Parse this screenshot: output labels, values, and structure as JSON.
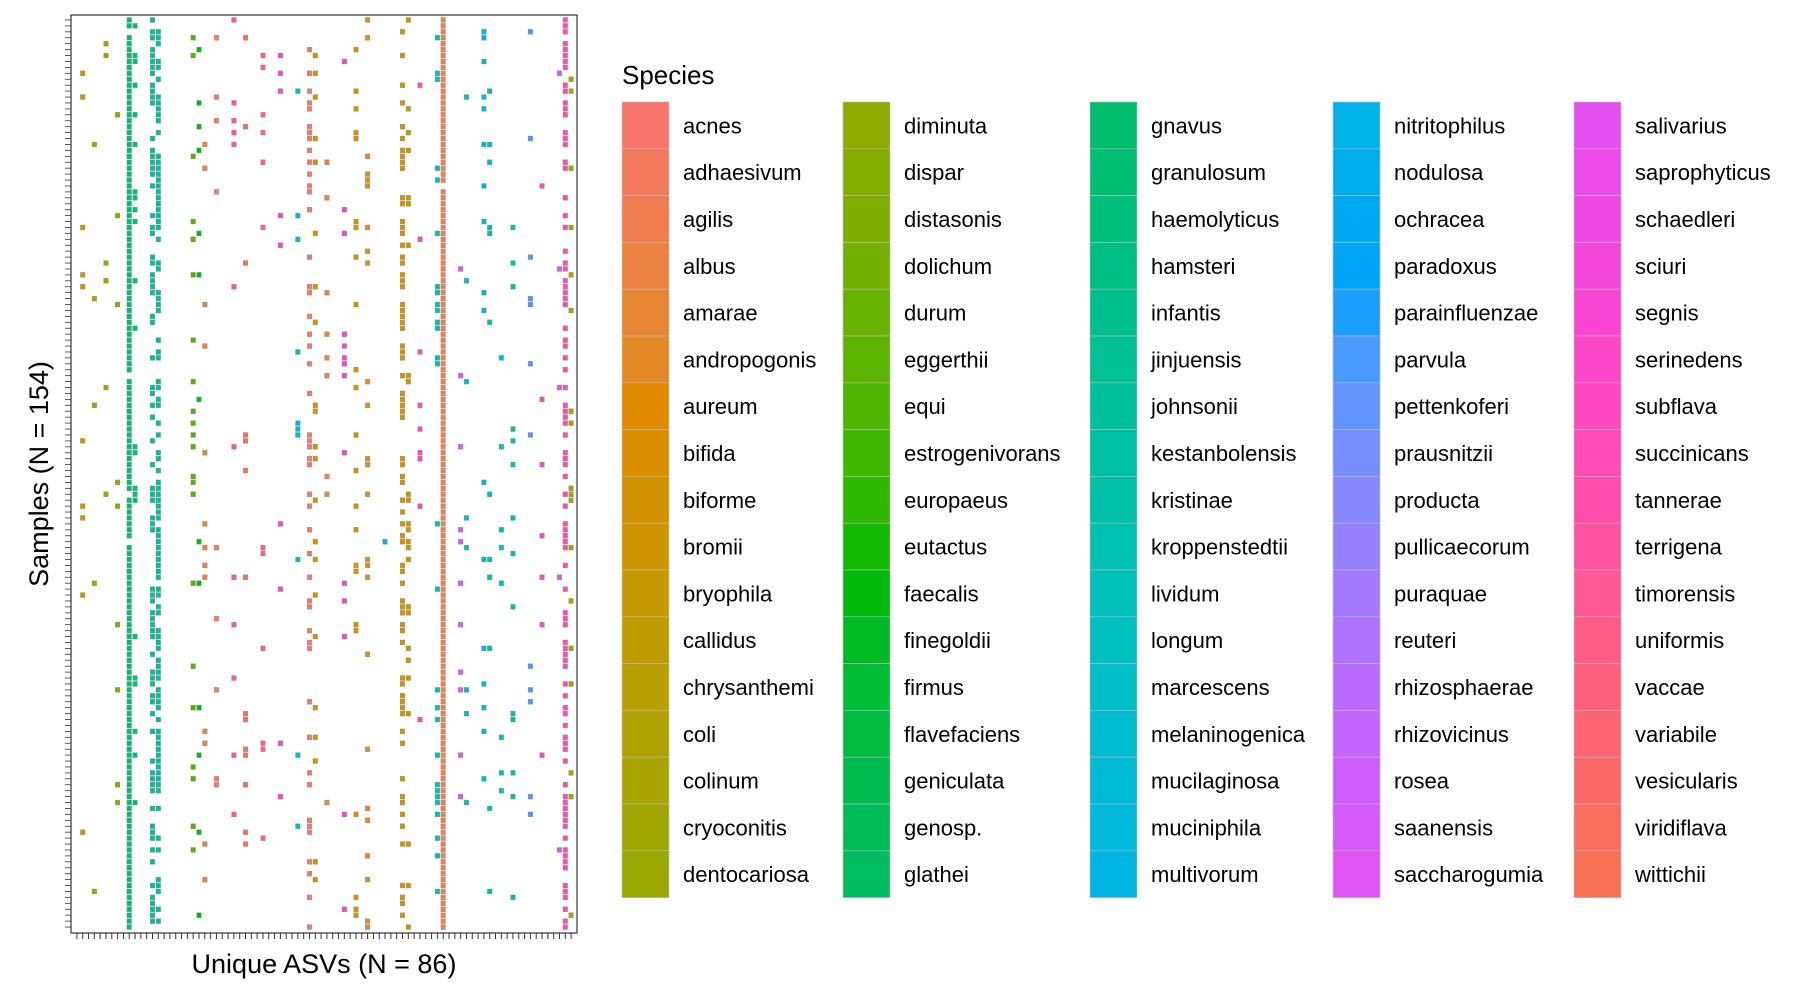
{
  "chart_data": {
    "type": "heatmap",
    "title": "",
    "xlabel": "Unique ASVs (N = 86)",
    "ylabel": "Samples (N = 154)",
    "n_x": 86,
    "n_y": 154,
    "grid": false,
    "legend": {
      "title": "Species",
      "placement": "right",
      "columns": 5,
      "entries": [
        {
          "name": "acnes",
          "color": "#F8766D"
        },
        {
          "name": "adhaesivum",
          "color": "#F47A5E"
        },
        {
          "name": "agilis",
          "color": "#F07E50"
        },
        {
          "name": "albus",
          "color": "#EB8241"
        },
        {
          "name": "amarae",
          "color": "#E78633"
        },
        {
          "name": "andropogonis",
          "color": "#E38A26"
        },
        {
          "name": "aureum",
          "color": "#E08B00"
        },
        {
          "name": "bifida",
          "color": "#DA8F00"
        },
        {
          "name": "biforme",
          "color": "#D39200"
        },
        {
          "name": "bromii",
          "color": "#CD9600"
        },
        {
          "name": "bryophila",
          "color": "#C69900"
        },
        {
          "name": "callidus",
          "color": "#BF9C00"
        },
        {
          "name": "chrysanthemi",
          "color": "#B8A000"
        },
        {
          "name": "coli",
          "color": "#B0A200"
        },
        {
          "name": "colinum",
          "color": "#A8A400"
        },
        {
          "name": "cryoconitis",
          "color": "#A0A600"
        },
        {
          "name": "dentocariosa",
          "color": "#98A800"
        },
        {
          "name": "diminuta",
          "color": "#8FAA00"
        },
        {
          "name": "dispar",
          "color": "#86AC00"
        },
        {
          "name": "distasonis",
          "color": "#7DAE00"
        },
        {
          "name": "dolichum",
          "color": "#73B000"
        },
        {
          "name": "durum",
          "color": "#68B200"
        },
        {
          "name": "eggerthii",
          "color": "#5CB400"
        },
        {
          "name": "equi",
          "color": "#4FB500"
        },
        {
          "name": "estrogenivorans",
          "color": "#40B700"
        },
        {
          "name": "europaeus",
          "color": "#2EB800"
        },
        {
          "name": "eutactus",
          "color": "#13B900"
        },
        {
          "name": "faecalis",
          "color": "#00BA0E"
        },
        {
          "name": "finegoldii",
          "color": "#00BA25"
        },
        {
          "name": "firmus",
          "color": "#00BB35"
        },
        {
          "name": "flavefaciens",
          "color": "#00BC42"
        },
        {
          "name": "geniculata",
          "color": "#00BC4E"
        },
        {
          "name": "genosp.",
          "color": "#00BD58"
        },
        {
          "name": "glathei",
          "color": "#00BD62"
        },
        {
          "name": "gnavus",
          "color": "#00BE6B"
        },
        {
          "name": "granulosum",
          "color": "#00BE73"
        },
        {
          "name": "haemolyticus",
          "color": "#00BF7C"
        },
        {
          "name": "hamsteri",
          "color": "#00BF84"
        },
        {
          "name": "infantis",
          "color": "#00BF8C"
        },
        {
          "name": "jinjuensis",
          "color": "#00C094"
        },
        {
          "name": "johnsonii",
          "color": "#00C09B"
        },
        {
          "name": "kestanbolensis",
          "color": "#00C0A3"
        },
        {
          "name": "kristinae",
          "color": "#00C0AA"
        },
        {
          "name": "kroppenstedtii",
          "color": "#00C0B2"
        },
        {
          "name": "lividum",
          "color": "#00C0B9"
        },
        {
          "name": "longum",
          "color": "#00BFC0"
        },
        {
          "name": "marcescens",
          "color": "#00BEC7"
        },
        {
          "name": "melaninogenica",
          "color": "#00BCCE"
        },
        {
          "name": "mucilaginosa",
          "color": "#00BAD5"
        },
        {
          "name": "muciniphila",
          "color": "#00B8DC"
        },
        {
          "name": "multivorum",
          "color": "#00B5E2"
        },
        {
          "name": "nitritophilus",
          "color": "#00B2E8"
        },
        {
          "name": "nodulosa",
          "color": "#00AEEE"
        },
        {
          "name": "ochracea",
          "color": "#00AAF3"
        },
        {
          "name": "paradoxus",
          "color": "#00A5F8"
        },
        {
          "name": "parainfluenzae",
          "color": "#1AA0FC"
        },
        {
          "name": "parvula",
          "color": "#489AFF"
        },
        {
          "name": "pettenkoferi",
          "color": "#6294FF"
        },
        {
          "name": "prausnitzii",
          "color": "#768EFF"
        },
        {
          "name": "producta",
          "color": "#8787FF"
        },
        {
          "name": "pullicaecorum",
          "color": "#9680FF"
        },
        {
          "name": "puraquae",
          "color": "#A379FF"
        },
        {
          "name": "reuteri",
          "color": "#AF72FF"
        },
        {
          "name": "rhizosphaerae",
          "color": "#BA6BFF"
        },
        {
          "name": "rhizovicinus",
          "color": "#C465FF"
        },
        {
          "name": "rosea",
          "color": "#CD5EFD"
        },
        {
          "name": "saanensis",
          "color": "#D659F9"
        },
        {
          "name": "saccharogumia",
          "color": "#DE54F4"
        },
        {
          "name": "salivarius",
          "color": "#E44FEF"
        },
        {
          "name": "saprophyticus",
          "color": "#EB4BE9"
        },
        {
          "name": "schaedleri",
          "color": "#F048E2"
        },
        {
          "name": "sciuri",
          "color": "#F546DA"
        },
        {
          "name": "segnis",
          "color": "#F845D2"
        },
        {
          "name": "serinedens",
          "color": "#FB46C9"
        },
        {
          "name": "subflava",
          "color": "#FD48BF"
        },
        {
          "name": "succinicans",
          "color": "#FF4BB5"
        },
        {
          "name": "tannerae",
          "color": "#FF4EAA"
        },
        {
          "name": "terrigena",
          "color": "#FF529F"
        },
        {
          "name": "timorensis",
          "color": "#FF5794"
        },
        {
          "name": "uniformis",
          "color": "#FF5B89"
        },
        {
          "name": "vaccae",
          "color": "#FF607E"
        },
        {
          "name": "variabile",
          "color": "#FF6473"
        },
        {
          "name": "vesicularis",
          "color": "#FD6869"
        },
        {
          "name": "viridiflava",
          "color": "#FB6D5F"
        },
        {
          "name": "wittichii",
          "color": "#F87156"
        }
      ]
    },
    "columns": [
      {
        "x": 9,
        "species": "granulosum",
        "density": 0.99,
        "seed": 1
      },
      {
        "x": 10,
        "species": "haemolyticus",
        "density": 0.15,
        "seed": 2
      },
      {
        "x": 13,
        "species": "jinjuensis",
        "density": 0.55,
        "seed": 3
      },
      {
        "x": 14,
        "species": "johnsonii",
        "density": 0.6,
        "seed": 4
      },
      {
        "x": 20,
        "species": "equi",
        "density": 0.18,
        "seed": 5
      },
      {
        "x": 21,
        "species": "faecalis",
        "density": 0.12,
        "seed": 6
      },
      {
        "x": 22,
        "species": "amarae",
        "density": 0.09,
        "seed": 7
      },
      {
        "x": 24,
        "species": "acnes",
        "density": 0.08,
        "seed": 8
      },
      {
        "x": 27,
        "species": "terrigena",
        "density": 0.06,
        "seed": 9
      },
      {
        "x": 29,
        "species": "wittichii",
        "density": 0.1,
        "seed": 10
      },
      {
        "x": 32,
        "species": "vaccae",
        "density": 0.06,
        "seed": 11
      },
      {
        "x": 35,
        "species": "serinedens",
        "density": 0.06,
        "seed": 12
      },
      {
        "x": 40,
        "species": "acnes",
        "density": 0.35,
        "seed": 13
      },
      {
        "x": 41,
        "species": "bromii",
        "density": 0.12,
        "seed": 14
      },
      {
        "x": 43,
        "species": "albus",
        "density": 0.07,
        "seed": 15
      },
      {
        "x": 46,
        "species": "segnis",
        "density": 0.08,
        "seed": 16
      },
      {
        "x": 48,
        "species": "bifida",
        "density": 0.16,
        "seed": 17
      },
      {
        "x": 50,
        "species": "andropogonis",
        "density": 0.14,
        "seed": 18
      },
      {
        "x": 56,
        "species": "biforme",
        "density": 0.45,
        "seed": 19
      },
      {
        "x": 57,
        "species": "bryophila",
        "density": 0.2,
        "seed": 20
      },
      {
        "x": 63,
        "species": "agilis",
        "density": 0.99,
        "seed": 21
      },
      {
        "x": 62,
        "species": "lividum",
        "density": 0.2,
        "seed": 22
      },
      {
        "x": 67,
        "species": "melaninogenica",
        "density": 0.05,
        "seed": 23
      },
      {
        "x": 70,
        "species": "mucilaginosa",
        "density": 0.12,
        "seed": 24
      },
      {
        "x": 71,
        "species": "kroppenstedtii",
        "density": 0.1,
        "seed": 25
      },
      {
        "x": 73,
        "species": "marcescens",
        "density": 0.06,
        "seed": 26
      },
      {
        "x": 78,
        "species": "parvula",
        "density": 0.09,
        "seed": 27
      },
      {
        "x": 80,
        "species": "subflava",
        "density": 0.06,
        "seed": 28
      },
      {
        "x": 83,
        "species": "saanensis",
        "density": 0.04,
        "seed": 29
      },
      {
        "x": 84,
        "species": "tannerae",
        "density": 0.6,
        "seed": 30
      },
      {
        "x": 85,
        "species": "cryoconitis",
        "density": 0.12,
        "seed": 31
      },
      {
        "x": 1,
        "species": "bifida",
        "density": 0.05,
        "seed": 32
      },
      {
        "x": 3,
        "species": "colinum",
        "density": 0.05,
        "seed": 33
      },
      {
        "x": 5,
        "species": "dentocariosa",
        "density": 0.05,
        "seed": 34
      },
      {
        "x": 7,
        "species": "diminuta",
        "density": 0.05,
        "seed": 35
      },
      {
        "x": 38,
        "species": "melaninogenica",
        "density": 0.05,
        "seed": 36
      },
      {
        "x": 53,
        "species": "multivorum",
        "density": 0.04,
        "seed": 37
      },
      {
        "x": 75,
        "species": "kestanbolensis",
        "density": 0.08,
        "seed": 38
      },
      {
        "x": 66,
        "species": "saccharogumia",
        "density": 0.04,
        "seed": 39
      },
      {
        "x": 59,
        "species": "subflava",
        "density": 0.04,
        "seed": 40
      }
    ]
  }
}
